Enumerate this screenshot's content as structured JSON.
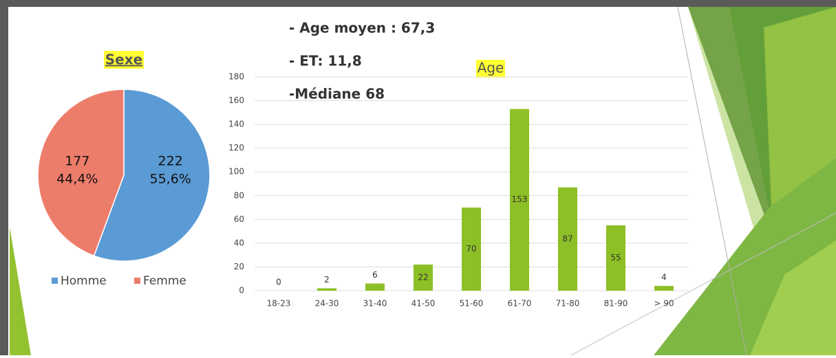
{
  "stats": [
    "- Age moyen : 67,3",
    "- ET: 11,8",
    "-Médiane 68"
  ],
  "chart_data": [
    {
      "type": "pie",
      "title": "Sexe",
      "categories": [
        "Homme",
        "Femme"
      ],
      "values": [
        222,
        177
      ],
      "percent_labels": [
        "55,6%",
        "44,4%"
      ],
      "colors": [
        "#5b9bd5",
        "#ed7d6b"
      ],
      "legend": "bottom"
    },
    {
      "type": "bar",
      "title": "Age",
      "categories": [
        "18-23",
        "24-30",
        "31-40",
        "41-50",
        "51-60",
        "61-70",
        "71-80",
        "81-90",
        "> 90"
      ],
      "values": [
        0,
        2,
        6,
        22,
        70,
        153,
        87,
        55,
        4
      ],
      "color": "#8dbf26",
      "ylim": [
        0,
        180
      ],
      "yticks": [
        0,
        20,
        40,
        60,
        80,
        100,
        120,
        140,
        160,
        180
      ],
      "grid": true
    }
  ]
}
